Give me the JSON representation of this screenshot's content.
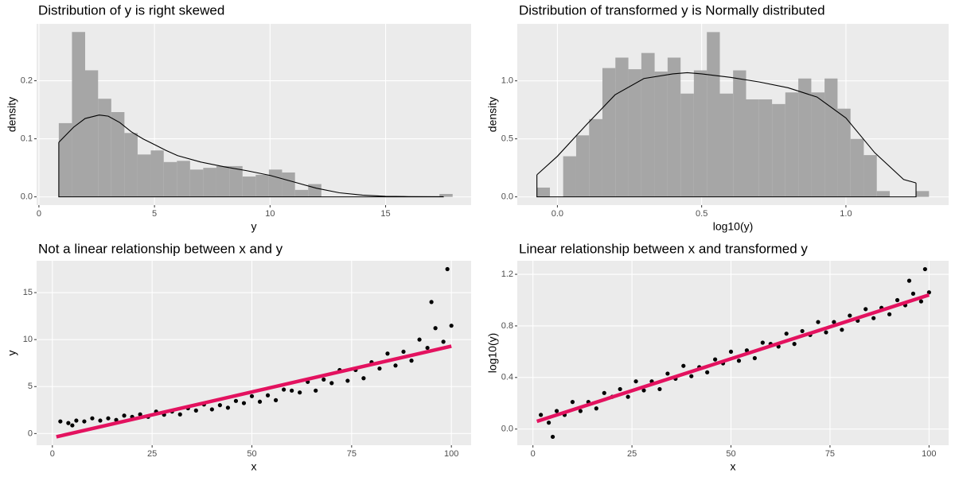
{
  "chart_data": [
    {
      "type": "histogram",
      "title": "Distribution of y is right skewed",
      "x_label": "y",
      "y_label": "density",
      "bins": [
        0.86,
        1.43,
        2.0,
        2.56,
        3.13,
        3.7,
        4.27,
        4.84,
        5.4,
        5.97,
        6.54,
        7.11,
        7.68,
        8.24,
        8.81,
        9.38,
        9.95,
        10.52,
        11.08,
        11.65,
        12.22,
        12.79,
        13.36,
        13.92,
        14.49,
        15.06,
        15.63,
        16.2,
        16.76,
        17.33,
        17.9
      ],
      "values": [
        0.127,
        0.284,
        0.218,
        0.169,
        0.146,
        0.11,
        0.073,
        0.08,
        0.06,
        0.062,
        0.047,
        0.05,
        0.053,
        0.053,
        0.035,
        0.038,
        0.047,
        0.042,
        0.012,
        0.022,
        0,
        0,
        0,
        0,
        0,
        0,
        0,
        0,
        0,
        0.005
      ],
      "color": "#a6a6a6",
      "curve": {
        "color": "#000000",
        "x": [
          0.86,
          1.5,
          2,
          2.6,
          3,
          3.5,
          4,
          4.5,
          5,
          5.5,
          6,
          7,
          8,
          9,
          10,
          11,
          12,
          13,
          14,
          15,
          16,
          17.5
        ],
        "values": [
          0.094,
          0.12,
          0.135,
          0.141,
          0.139,
          0.128,
          0.112,
          0.1,
          0.09,
          0.08,
          0.071,
          0.06,
          0.052,
          0.045,
          0.037,
          0.026,
          0.015,
          0.007,
          0.003,
          0.001,
          0.0005,
          0.0003
        ]
      },
      "xlim": [
        -0.1,
        18.7
      ],
      "ylim": [
        -0.0142,
        0.298
      ],
      "xticks": [
        0,
        5,
        10,
        15
      ],
      "yticks": [
        {
          "value": 0,
          "label": "0.0"
        },
        {
          "value": 0.1,
          "label": "0.1"
        },
        {
          "value": 0.2,
          "label": "0.2"
        }
      ],
      "grid": true
    },
    {
      "type": "histogram",
      "title": "Distribution of transformed y is Normally distributed",
      "x_label": "log10(y)",
      "y_label": "density",
      "bins": [
        -0.071,
        -0.026,
        0.02,
        0.065,
        0.11,
        0.156,
        0.201,
        0.246,
        0.291,
        0.337,
        0.382,
        0.427,
        0.473,
        0.518,
        0.563,
        0.609,
        0.654,
        0.699,
        0.744,
        0.79,
        0.835,
        0.88,
        0.926,
        0.971,
        1.016,
        1.062,
        1.107,
        1.152,
        1.197,
        1.243,
        1.288
      ],
      "values": [
        0.08,
        0,
        0.35,
        0.53,
        0.67,
        1.11,
        1.2,
        1.1,
        1.24,
        1.08,
        1.2,
        0.89,
        1.09,
        1.42,
        0.89,
        1.09,
        0.84,
        0.84,
        0.8,
        0.9,
        1.02,
        0.9,
        1.02,
        0.76,
        0.5,
        0.36,
        0.05,
        0,
        0,
        0.05
      ],
      "color": "#a6a6a6",
      "curve": {
        "color": "#000000",
        "x": [
          -0.071,
          0,
          0.1,
          0.2,
          0.3,
          0.4,
          0.45,
          0.5,
          0.6,
          0.7,
          0.8,
          0.9,
          1.0,
          1.1,
          1.2,
          1.243
        ],
        "values": [
          0.19,
          0.35,
          0.62,
          0.88,
          1.02,
          1.06,
          1.07,
          1.06,
          1.03,
          0.99,
          0.94,
          0.86,
          0.68,
          0.38,
          0.15,
          0.12
        ]
      },
      "xlim": [
        -0.139,
        1.356
      ],
      "ylim": [
        -0.071,
        1.491
      ],
      "xticks": [
        {
          "value": 0,
          "label": "0.0"
        },
        {
          "value": 0.5,
          "label": "0.5"
        },
        {
          "value": 1,
          "label": "1.0"
        }
      ],
      "yticks": [
        {
          "value": 0,
          "label": "0.0"
        },
        {
          "value": 0.5,
          "label": "0.5"
        },
        {
          "value": 1,
          "label": "1.0"
        }
      ],
      "grid": true
    },
    {
      "type": "scatter",
      "title": "Not a linear relationship between x and y",
      "x_label": "x",
      "y_label": "y",
      "series": [
        {
          "type": "scatter",
          "color": "#000000",
          "x": [
            2,
            4,
            6,
            8,
            10,
            12,
            14,
            16,
            18,
            20,
            22,
            24,
            26,
            28,
            30,
            32,
            34,
            36,
            38,
            40,
            42,
            44,
            46,
            48,
            50,
            52,
            54,
            56,
            58,
            60,
            62,
            64,
            66,
            68,
            70,
            72,
            74,
            76,
            78,
            80,
            82,
            84,
            86,
            88,
            90,
            92,
            94,
            96,
            98,
            100,
            99,
            95,
            5
          ],
          "values": [
            1.29,
            1.12,
            1.38,
            1.29,
            1.62,
            1.38,
            1.62,
            1.45,
            1.91,
            1.78,
            2.04,
            1.78,
            2.34,
            2.0,
            2.34,
            2.04,
            2.69,
            2.45,
            3.09,
            2.57,
            3.02,
            2.75,
            3.47,
            3.24,
            3.98,
            3.39,
            4.07,
            3.55,
            4.68,
            4.57,
            4.37,
            5.5,
            4.57,
            5.75,
            5.37,
            6.76,
            5.62,
            6.76,
            5.89,
            7.59,
            6.92,
            8.51,
            7.24,
            8.71,
            7.76,
            10.0,
            9.12,
            11.22,
            9.77,
            11.48,
            17.5,
            14.0,
            0.87
          ]
        },
        {
          "type": "line",
          "color": "#e3125f",
          "x": [
            1,
            100
          ],
          "values": [
            -0.35,
            9.3
          ]
        }
      ],
      "xlim": [
        -3.95,
        104.95
      ],
      "ylim": [
        -1.24,
        18.39
      ],
      "xticks": [
        0,
        25,
        50,
        75,
        100
      ],
      "yticks": [
        0,
        5,
        10,
        15
      ],
      "grid": true
    },
    {
      "type": "scatter",
      "title": "Linear relationship between x and transformed y",
      "x_label": "x",
      "y_label": "log10(y)",
      "series": [
        {
          "type": "scatter",
          "color": "#000000",
          "x": [
            2,
            4,
            6,
            8,
            10,
            12,
            14,
            16,
            18,
            20,
            22,
            24,
            26,
            28,
            30,
            32,
            34,
            36,
            38,
            40,
            42,
            44,
            46,
            48,
            50,
            52,
            54,
            56,
            58,
            60,
            62,
            64,
            66,
            68,
            70,
            72,
            74,
            76,
            78,
            80,
            82,
            84,
            86,
            88,
            90,
            92,
            94,
            96,
            98,
            100,
            99,
            95,
            5
          ],
          "values": [
            0.11,
            0.05,
            0.14,
            0.11,
            0.21,
            0.14,
            0.21,
            0.16,
            0.28,
            0.25,
            0.31,
            0.25,
            0.37,
            0.3,
            0.37,
            0.31,
            0.43,
            0.39,
            0.49,
            0.41,
            0.48,
            0.44,
            0.54,
            0.51,
            0.6,
            0.53,
            0.61,
            0.55,
            0.67,
            0.66,
            0.64,
            0.74,
            0.66,
            0.76,
            0.73,
            0.83,
            0.75,
            0.83,
            0.77,
            0.88,
            0.84,
            0.93,
            0.86,
            0.94,
            0.89,
            1.0,
            0.96,
            1.05,
            0.99,
            1.06,
            1.24,
            1.15,
            -0.06
          ]
        },
        {
          "type": "line",
          "color": "#e3125f",
          "x": [
            1,
            100
          ],
          "values": [
            0.06,
            1.04
          ]
        }
      ],
      "xlim": [
        -3.95,
        104.95
      ],
      "ylim": [
        -0.125,
        1.305
      ],
      "xticks": [
        0,
        25,
        50,
        75,
        100
      ],
      "yticks": [
        {
          "value": 0,
          "label": "0.0"
        },
        {
          "value": 0.4,
          "label": "0.4"
        },
        {
          "value": 0.8,
          "label": "0.8"
        },
        {
          "value": 1.2,
          "label": "1.2"
        }
      ],
      "grid": true
    }
  ]
}
